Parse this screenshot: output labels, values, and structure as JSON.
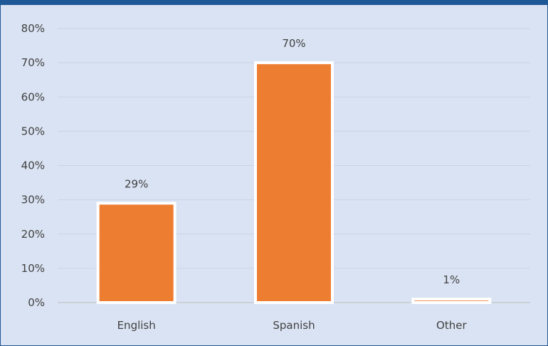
{
  "colors": {
    "band": "#1f5896",
    "background": "#dae3f3",
    "bar_fill": "#ed7d31",
    "bar_stroke": "#ffffff",
    "gridline": "#c9d3e4",
    "axis": "#bfbfbf",
    "text": "#404040"
  },
  "chart_data": {
    "type": "bar",
    "title": "",
    "xlabel": "",
    "ylabel": "",
    "categories": [
      "English",
      "Spanish",
      "Other"
    ],
    "values": [
      29,
      70,
      1
    ],
    "data_labels": [
      "29%",
      "70%",
      "1%"
    ],
    "ylim": [
      0,
      80
    ],
    "yticks": [
      0,
      10,
      20,
      30,
      40,
      50,
      60,
      70,
      80
    ],
    "ytick_labels": [
      "0%",
      "10%",
      "20%",
      "30%",
      "40%",
      "50%",
      "60%",
      "70%",
      "80%"
    ],
    "grid": true,
    "legend": "none"
  }
}
